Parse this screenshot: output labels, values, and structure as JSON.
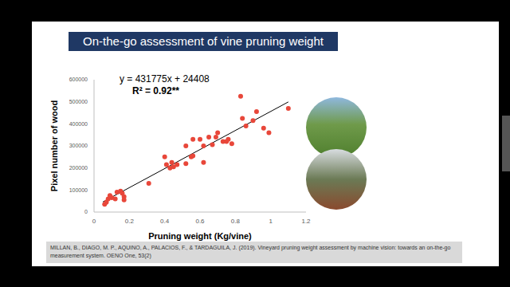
{
  "slide": {
    "title": "On-the-go assessment of vine pruning weight",
    "reference": "MILLAN, B., DIAGO, M. P., AQUINO, A., PALACIOS, F., & TARDAGUILA, J. (2019). Vineyard pruning weight assessment by machine vision: towards an on-the-go measurement system. OENO One, 53(2)"
  },
  "chart_data": {
    "type": "scatter",
    "xlabel": "Pruning weight   (Kg/vine)",
    "ylabel": "Pixel number of wood",
    "annotations": [
      "y = 431775x + 24408",
      "R² = 0.92**"
    ],
    "x": [
      0.06,
      0.07,
      0.08,
      0.09,
      0.1,
      0.12,
      0.13,
      0.15,
      0.17,
      0.17,
      0.16,
      0.31,
      0.4,
      0.41,
      0.43,
      0.44,
      0.45,
      0.47,
      0.52,
      0.52,
      0.55,
      0.56,
      0.56,
      0.6,
      0.62,
      0.62,
      0.65,
      0.67,
      0.69,
      0.7,
      0.73,
      0.75,
      0.76,
      0.78,
      0.83,
      0.84,
      0.86,
      0.9,
      0.92,
      0.96,
      0.99,
      1.1
    ],
    "values": [
      35000,
      45000,
      60000,
      75000,
      65000,
      60000,
      90000,
      95000,
      70000,
      55000,
      85000,
      130000,
      250000,
      215000,
      200000,
      225000,
      205000,
      215000,
      220000,
      300000,
      250000,
      255000,
      330000,
      330000,
      300000,
      225000,
      340000,
      305000,
      340000,
      360000,
      320000,
      320000,
      330000,
      310000,
      525000,
      425000,
      390000,
      415000,
      455000,
      380000,
      360000,
      470000
    ],
    "color": "#e8473a",
    "marker": "circle",
    "trendline": {
      "slope": 431775,
      "intercept": 24408,
      "x": [
        0.05,
        1.1
      ],
      "color": "#000000"
    },
    "xlim": [
      0,
      1.2
    ],
    "ylim": [
      0,
      600000
    ],
    "xticks": [
      0,
      0.2,
      0.4,
      0.6,
      0.8,
      1,
      1.2
    ],
    "yticks": [
      0,
      100000,
      200000,
      300000,
      400000,
      500000,
      600000
    ],
    "grid": false
  }
}
